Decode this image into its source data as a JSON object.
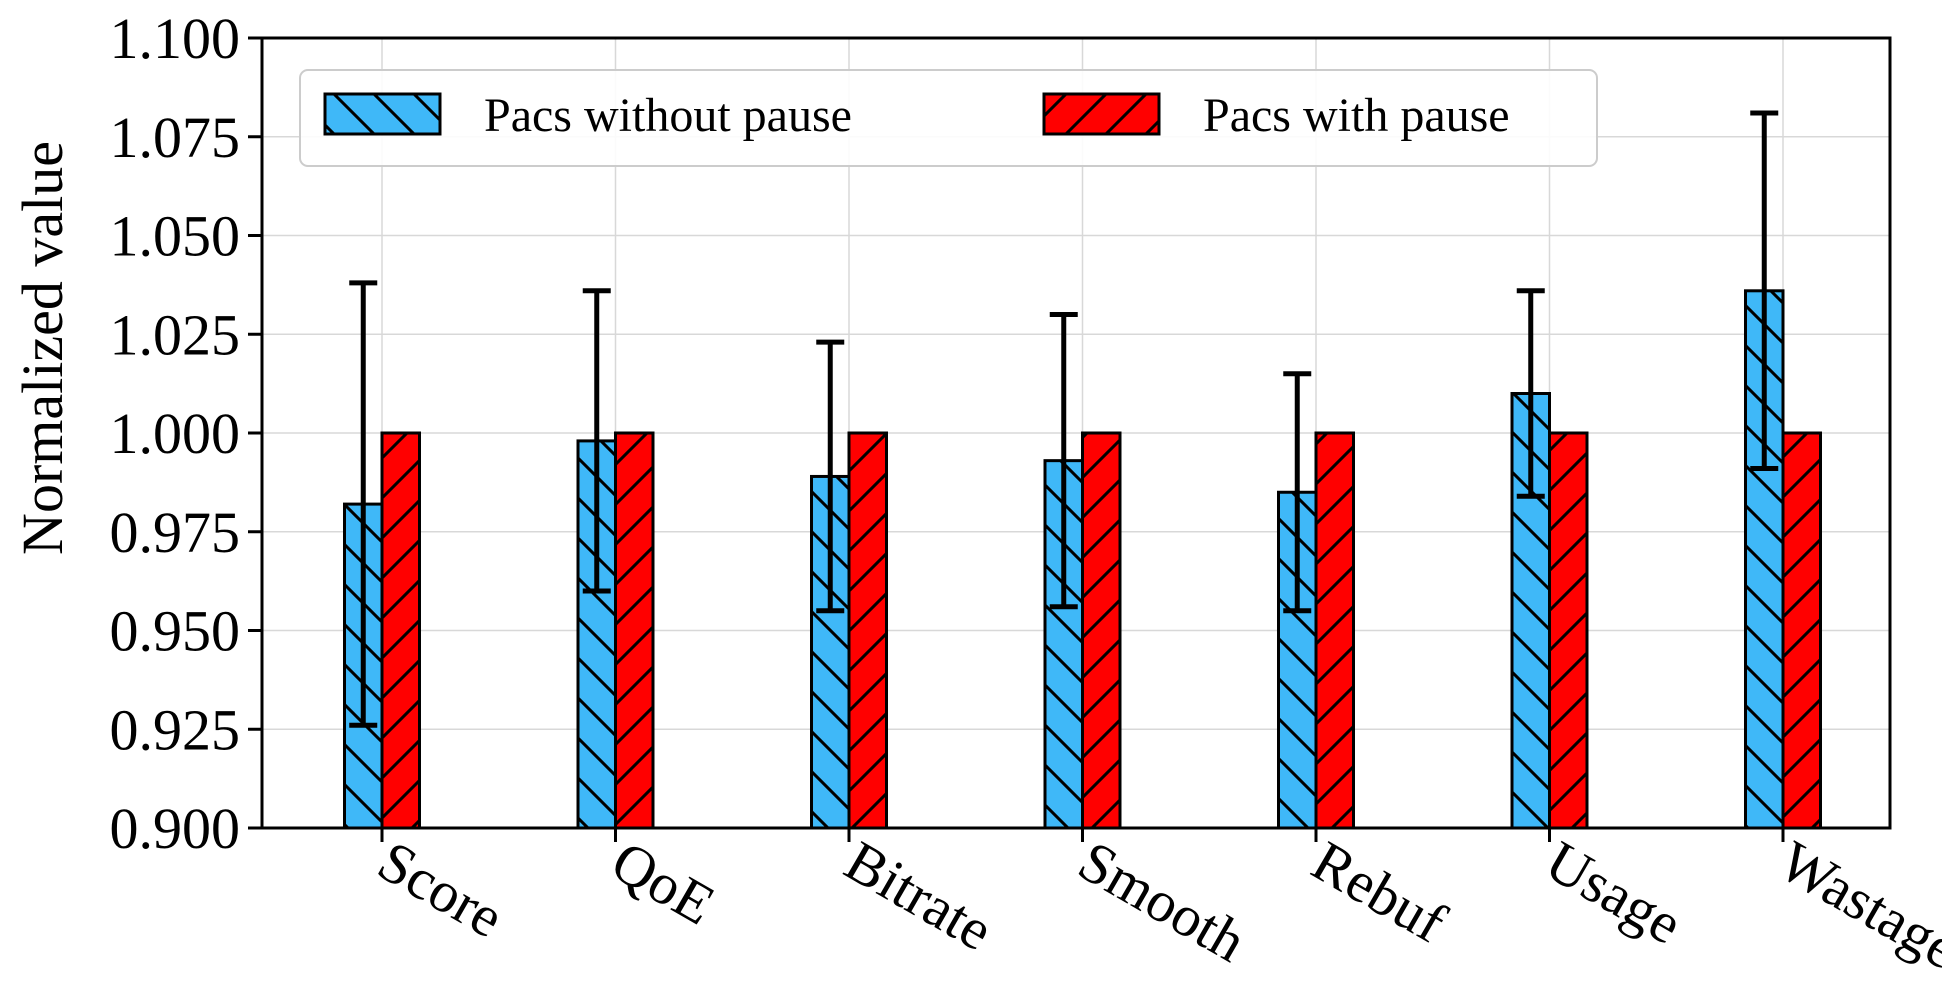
{
  "chart_data": {
    "type": "bar",
    "ylabel": "Normalized value",
    "xlabel": "",
    "title": "",
    "ylim": [
      0.9,
      1.1
    ],
    "yticks": [
      "0.900",
      "0.925",
      "0.950",
      "0.975",
      "1.000",
      "1.025",
      "1.050",
      "1.075",
      "1.100"
    ],
    "grid": true,
    "legend_position": "top-left",
    "categories": [
      "Score",
      "QoE",
      "Bitrate",
      "Smooth",
      "Rebuf",
      "Usage",
      "Wastage"
    ],
    "series": [
      {
        "name": "Pacs without pause",
        "color": "#3fb8f8",
        "hatch": "backslash",
        "values": [
          0.982,
          0.998,
          0.989,
          0.993,
          0.985,
          1.01,
          1.036
        ],
        "error": [
          0.056,
          0.038,
          0.034,
          0.037,
          0.03,
          0.026,
          0.045
        ]
      },
      {
        "name": "Pacs with pause",
        "color": "#ff0000",
        "hatch": "slash",
        "values": [
          1.0,
          1.0,
          1.0,
          1.0,
          1.0,
          1.0,
          1.0
        ],
        "error": [
          0,
          0,
          0,
          0,
          0,
          0,
          0
        ]
      }
    ]
  }
}
